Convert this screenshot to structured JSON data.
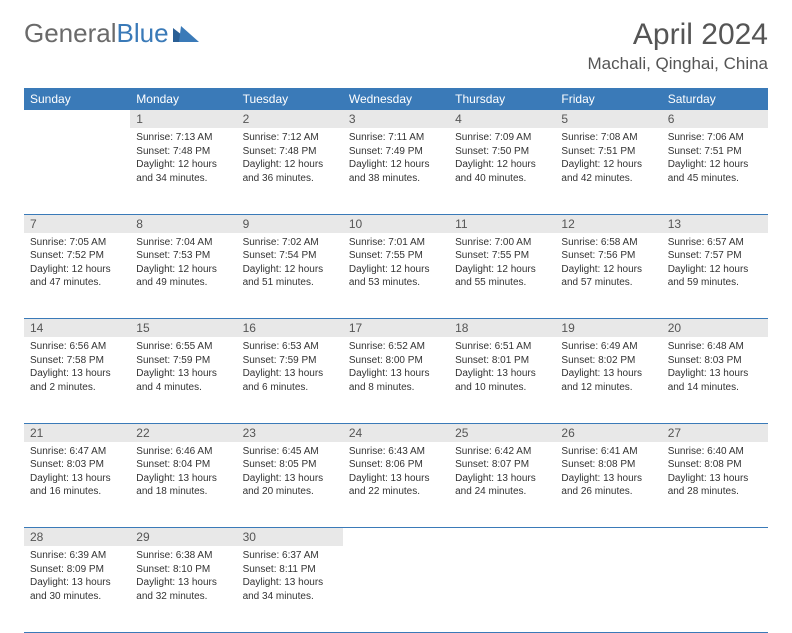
{
  "brand": {
    "general": "General",
    "blue": "Blue"
  },
  "title": "April 2024",
  "location": "Machali, Qinghai, China",
  "colors": {
    "header_bg": "#3a7ab8",
    "header_text": "#ffffff",
    "daynum_bg": "#e8e8e8",
    "border": "#3a7ab8",
    "page_bg": "#ffffff",
    "text": "#333333",
    "title_color": "#555555"
  },
  "day_headers": [
    "Sunday",
    "Monday",
    "Tuesday",
    "Wednesday",
    "Thursday",
    "Friday",
    "Saturday"
  ],
  "weeks": [
    {
      "nums": [
        "",
        "1",
        "2",
        "3",
        "4",
        "5",
        "6"
      ],
      "cells": [
        null,
        {
          "sunrise": "Sunrise: 7:13 AM",
          "sunset": "Sunset: 7:48 PM",
          "daylight": "Daylight: 12 hours and 34 minutes."
        },
        {
          "sunrise": "Sunrise: 7:12 AM",
          "sunset": "Sunset: 7:48 PM",
          "daylight": "Daylight: 12 hours and 36 minutes."
        },
        {
          "sunrise": "Sunrise: 7:11 AM",
          "sunset": "Sunset: 7:49 PM",
          "daylight": "Daylight: 12 hours and 38 minutes."
        },
        {
          "sunrise": "Sunrise: 7:09 AM",
          "sunset": "Sunset: 7:50 PM",
          "daylight": "Daylight: 12 hours and 40 minutes."
        },
        {
          "sunrise": "Sunrise: 7:08 AM",
          "sunset": "Sunset: 7:51 PM",
          "daylight": "Daylight: 12 hours and 42 minutes."
        },
        {
          "sunrise": "Sunrise: 7:06 AM",
          "sunset": "Sunset: 7:51 PM",
          "daylight": "Daylight: 12 hours and 45 minutes."
        }
      ]
    },
    {
      "nums": [
        "7",
        "8",
        "9",
        "10",
        "11",
        "12",
        "13"
      ],
      "cells": [
        {
          "sunrise": "Sunrise: 7:05 AM",
          "sunset": "Sunset: 7:52 PM",
          "daylight": "Daylight: 12 hours and 47 minutes."
        },
        {
          "sunrise": "Sunrise: 7:04 AM",
          "sunset": "Sunset: 7:53 PM",
          "daylight": "Daylight: 12 hours and 49 minutes."
        },
        {
          "sunrise": "Sunrise: 7:02 AM",
          "sunset": "Sunset: 7:54 PM",
          "daylight": "Daylight: 12 hours and 51 minutes."
        },
        {
          "sunrise": "Sunrise: 7:01 AM",
          "sunset": "Sunset: 7:55 PM",
          "daylight": "Daylight: 12 hours and 53 minutes."
        },
        {
          "sunrise": "Sunrise: 7:00 AM",
          "sunset": "Sunset: 7:55 PM",
          "daylight": "Daylight: 12 hours and 55 minutes."
        },
        {
          "sunrise": "Sunrise: 6:58 AM",
          "sunset": "Sunset: 7:56 PM",
          "daylight": "Daylight: 12 hours and 57 minutes."
        },
        {
          "sunrise": "Sunrise: 6:57 AM",
          "sunset": "Sunset: 7:57 PM",
          "daylight": "Daylight: 12 hours and 59 minutes."
        }
      ]
    },
    {
      "nums": [
        "14",
        "15",
        "16",
        "17",
        "18",
        "19",
        "20"
      ],
      "cells": [
        {
          "sunrise": "Sunrise: 6:56 AM",
          "sunset": "Sunset: 7:58 PM",
          "daylight": "Daylight: 13 hours and 2 minutes."
        },
        {
          "sunrise": "Sunrise: 6:55 AM",
          "sunset": "Sunset: 7:59 PM",
          "daylight": "Daylight: 13 hours and 4 minutes."
        },
        {
          "sunrise": "Sunrise: 6:53 AM",
          "sunset": "Sunset: 7:59 PM",
          "daylight": "Daylight: 13 hours and 6 minutes."
        },
        {
          "sunrise": "Sunrise: 6:52 AM",
          "sunset": "Sunset: 8:00 PM",
          "daylight": "Daylight: 13 hours and 8 minutes."
        },
        {
          "sunrise": "Sunrise: 6:51 AM",
          "sunset": "Sunset: 8:01 PM",
          "daylight": "Daylight: 13 hours and 10 minutes."
        },
        {
          "sunrise": "Sunrise: 6:49 AM",
          "sunset": "Sunset: 8:02 PM",
          "daylight": "Daylight: 13 hours and 12 minutes."
        },
        {
          "sunrise": "Sunrise: 6:48 AM",
          "sunset": "Sunset: 8:03 PM",
          "daylight": "Daylight: 13 hours and 14 minutes."
        }
      ]
    },
    {
      "nums": [
        "21",
        "22",
        "23",
        "24",
        "25",
        "26",
        "27"
      ],
      "cells": [
        {
          "sunrise": "Sunrise: 6:47 AM",
          "sunset": "Sunset: 8:03 PM",
          "daylight": "Daylight: 13 hours and 16 minutes."
        },
        {
          "sunrise": "Sunrise: 6:46 AM",
          "sunset": "Sunset: 8:04 PM",
          "daylight": "Daylight: 13 hours and 18 minutes."
        },
        {
          "sunrise": "Sunrise: 6:45 AM",
          "sunset": "Sunset: 8:05 PM",
          "daylight": "Daylight: 13 hours and 20 minutes."
        },
        {
          "sunrise": "Sunrise: 6:43 AM",
          "sunset": "Sunset: 8:06 PM",
          "daylight": "Daylight: 13 hours and 22 minutes."
        },
        {
          "sunrise": "Sunrise: 6:42 AM",
          "sunset": "Sunset: 8:07 PM",
          "daylight": "Daylight: 13 hours and 24 minutes."
        },
        {
          "sunrise": "Sunrise: 6:41 AM",
          "sunset": "Sunset: 8:08 PM",
          "daylight": "Daylight: 13 hours and 26 minutes."
        },
        {
          "sunrise": "Sunrise: 6:40 AM",
          "sunset": "Sunset: 8:08 PM",
          "daylight": "Daylight: 13 hours and 28 minutes."
        }
      ]
    },
    {
      "nums": [
        "28",
        "29",
        "30",
        "",
        "",
        "",
        ""
      ],
      "cells": [
        {
          "sunrise": "Sunrise: 6:39 AM",
          "sunset": "Sunset: 8:09 PM",
          "daylight": "Daylight: 13 hours and 30 minutes."
        },
        {
          "sunrise": "Sunrise: 6:38 AM",
          "sunset": "Sunset: 8:10 PM",
          "daylight": "Daylight: 13 hours and 32 minutes."
        },
        {
          "sunrise": "Sunrise: 6:37 AM",
          "sunset": "Sunset: 8:11 PM",
          "daylight": "Daylight: 13 hours and 34 minutes."
        },
        null,
        null,
        null,
        null
      ]
    }
  ]
}
